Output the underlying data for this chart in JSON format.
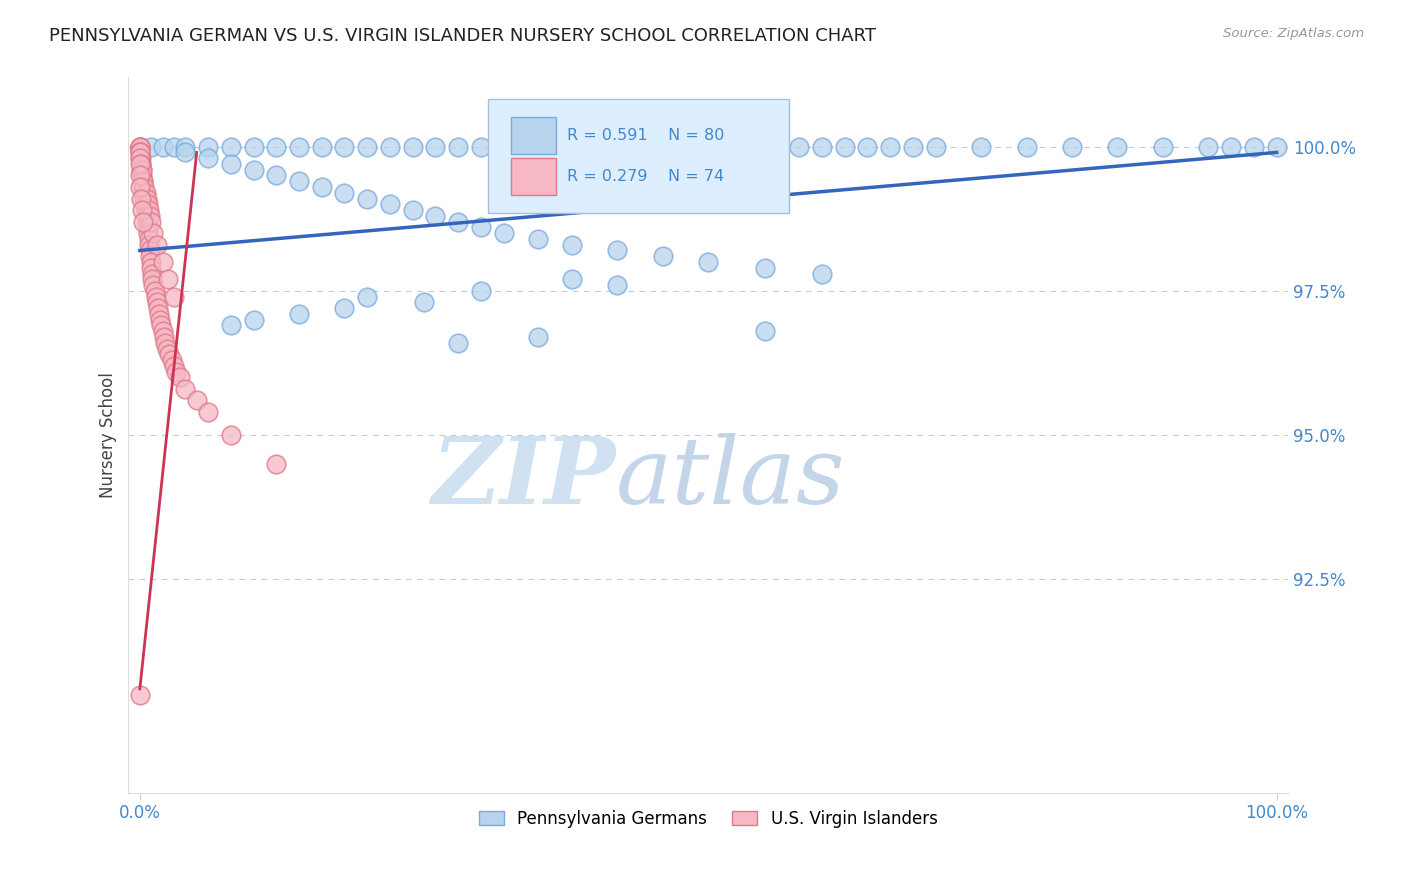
{
  "title": "PENNSYLVANIA GERMAN VS U.S. VIRGIN ISLANDER NURSERY SCHOOL CORRELATION CHART",
  "source": "Source: ZipAtlas.com",
  "ylabel": "Nursery School",
  "ylim": [
    0.888,
    1.012
  ],
  "xlim": [
    -0.01,
    1.01
  ],
  "blue_R": 0.591,
  "blue_N": 80,
  "pink_R": 0.279,
  "pink_N": 74,
  "blue_color": "#b8d4ec",
  "blue_edge_color": "#7aaadd",
  "pink_color": "#f5b8c4",
  "pink_edge_color": "#e07888",
  "blue_line_color": "#3366bb",
  "pink_line_color": "#cc3355",
  "watermark_zip_color": "#c5d8ee",
  "watermark_atlas_color": "#b8cce0",
  "title_color": "#222222",
  "axis_color": "#4488cc",
  "grid_color": "#bbccdd",
  "legend_box_bg": "#ddeeff",
  "legend_border_color": "#aabbdd",
  "blue_trend_x0": 0.0,
  "blue_trend_y0": 0.982,
  "blue_trend_x1": 1.0,
  "blue_trend_y1": 0.999,
  "pink_trend_x0": 0.0,
  "pink_trend_y0": 0.906,
  "pink_trend_x1": 0.05,
  "pink_trend_y1": 0.999,
  "blue_dots_top_x": [
    0.0,
    0.01,
    0.02,
    0.03,
    0.04,
    0.06,
    0.08,
    0.1,
    0.12,
    0.14,
    0.16,
    0.18,
    0.2,
    0.22,
    0.24,
    0.26,
    0.28,
    0.3,
    0.32,
    0.34,
    0.36,
    0.38,
    0.42,
    0.44,
    0.46,
    0.48,
    0.5,
    0.52,
    0.54,
    0.56,
    0.58,
    0.6,
    0.62,
    0.64,
    0.66,
    0.68,
    0.7,
    0.74,
    0.78,
    0.82,
    0.86,
    0.9,
    0.94,
    0.96,
    0.98,
    1.0
  ],
  "blue_dots_top_y": [
    1.0,
    1.0,
    1.0,
    1.0,
    1.0,
    1.0,
    1.0,
    1.0,
    1.0,
    1.0,
    1.0,
    1.0,
    1.0,
    1.0,
    1.0,
    1.0,
    1.0,
    1.0,
    1.0,
    1.0,
    1.0,
    1.0,
    1.0,
    1.0,
    1.0,
    1.0,
    1.0,
    1.0,
    1.0,
    1.0,
    1.0,
    1.0,
    1.0,
    1.0,
    1.0,
    1.0,
    1.0,
    1.0,
    1.0,
    1.0,
    1.0,
    1.0,
    1.0,
    1.0,
    1.0,
    1.0
  ],
  "blue_dots_scatter_x": [
    0.04,
    0.06,
    0.08,
    0.1,
    0.12,
    0.14,
    0.16,
    0.18,
    0.2,
    0.22,
    0.24,
    0.26,
    0.28,
    0.3,
    0.32,
    0.35,
    0.38,
    0.42,
    0.46,
    0.5,
    0.55,
    0.6,
    0.38,
    0.42,
    0.3,
    0.2,
    0.25,
    0.18,
    0.14,
    0.1,
    0.08,
    0.55,
    0.35,
    0.28
  ],
  "blue_dots_scatter_y": [
    0.999,
    0.998,
    0.997,
    0.996,
    0.995,
    0.994,
    0.993,
    0.992,
    0.991,
    0.99,
    0.989,
    0.988,
    0.987,
    0.986,
    0.985,
    0.984,
    0.983,
    0.982,
    0.981,
    0.98,
    0.979,
    0.978,
    0.977,
    0.976,
    0.975,
    0.974,
    0.973,
    0.972,
    0.971,
    0.97,
    0.969,
    0.968,
    0.967,
    0.966
  ],
  "pink_dots_x": [
    0.0,
    0.0,
    0.0,
    0.0,
    0.0,
    0.0,
    0.001,
    0.001,
    0.001,
    0.002,
    0.002,
    0.003,
    0.003,
    0.004,
    0.004,
    0.005,
    0.005,
    0.006,
    0.006,
    0.007,
    0.007,
    0.008,
    0.008,
    0.009,
    0.009,
    0.01,
    0.01,
    0.011,
    0.011,
    0.012,
    0.013,
    0.014,
    0.015,
    0.016,
    0.017,
    0.018,
    0.019,
    0.02,
    0.021,
    0.022,
    0.024,
    0.026,
    0.028,
    0.03,
    0.032,
    0.035,
    0.04,
    0.05,
    0.06,
    0.08,
    0.12,
    0.0,
    0.0,
    0.001,
    0.002,
    0.003,
    0.004,
    0.005,
    0.006,
    0.007,
    0.008,
    0.009,
    0.01,
    0.012,
    0.015,
    0.02,
    0.025,
    0.03,
    0.0,
    0.0,
    0.0,
    0.001,
    0.002,
    0.003
  ],
  "pink_dots_y": [
    1.0,
    1.0,
    1.0,
    0.999,
    0.999,
    0.998,
    0.998,
    0.997,
    0.996,
    0.996,
    0.995,
    0.994,
    0.993,
    0.992,
    0.991,
    0.99,
    0.989,
    0.988,
    0.987,
    0.986,
    0.985,
    0.984,
    0.983,
    0.982,
    0.981,
    0.98,
    0.979,
    0.978,
    0.977,
    0.976,
    0.975,
    0.974,
    0.973,
    0.972,
    0.971,
    0.97,
    0.969,
    0.968,
    0.967,
    0.966,
    0.965,
    0.964,
    0.963,
    0.962,
    0.961,
    0.96,
    0.958,
    0.956,
    0.954,
    0.95,
    0.945,
    0.999,
    0.998,
    0.997,
    0.996,
    0.994,
    0.993,
    0.992,
    0.991,
    0.99,
    0.989,
    0.988,
    0.987,
    0.985,
    0.983,
    0.98,
    0.977,
    0.974,
    0.997,
    0.995,
    0.993,
    0.991,
    0.989,
    0.987
  ],
  "pink_outlier_x": [
    0.0
  ],
  "pink_outlier_y": [
    0.905
  ]
}
